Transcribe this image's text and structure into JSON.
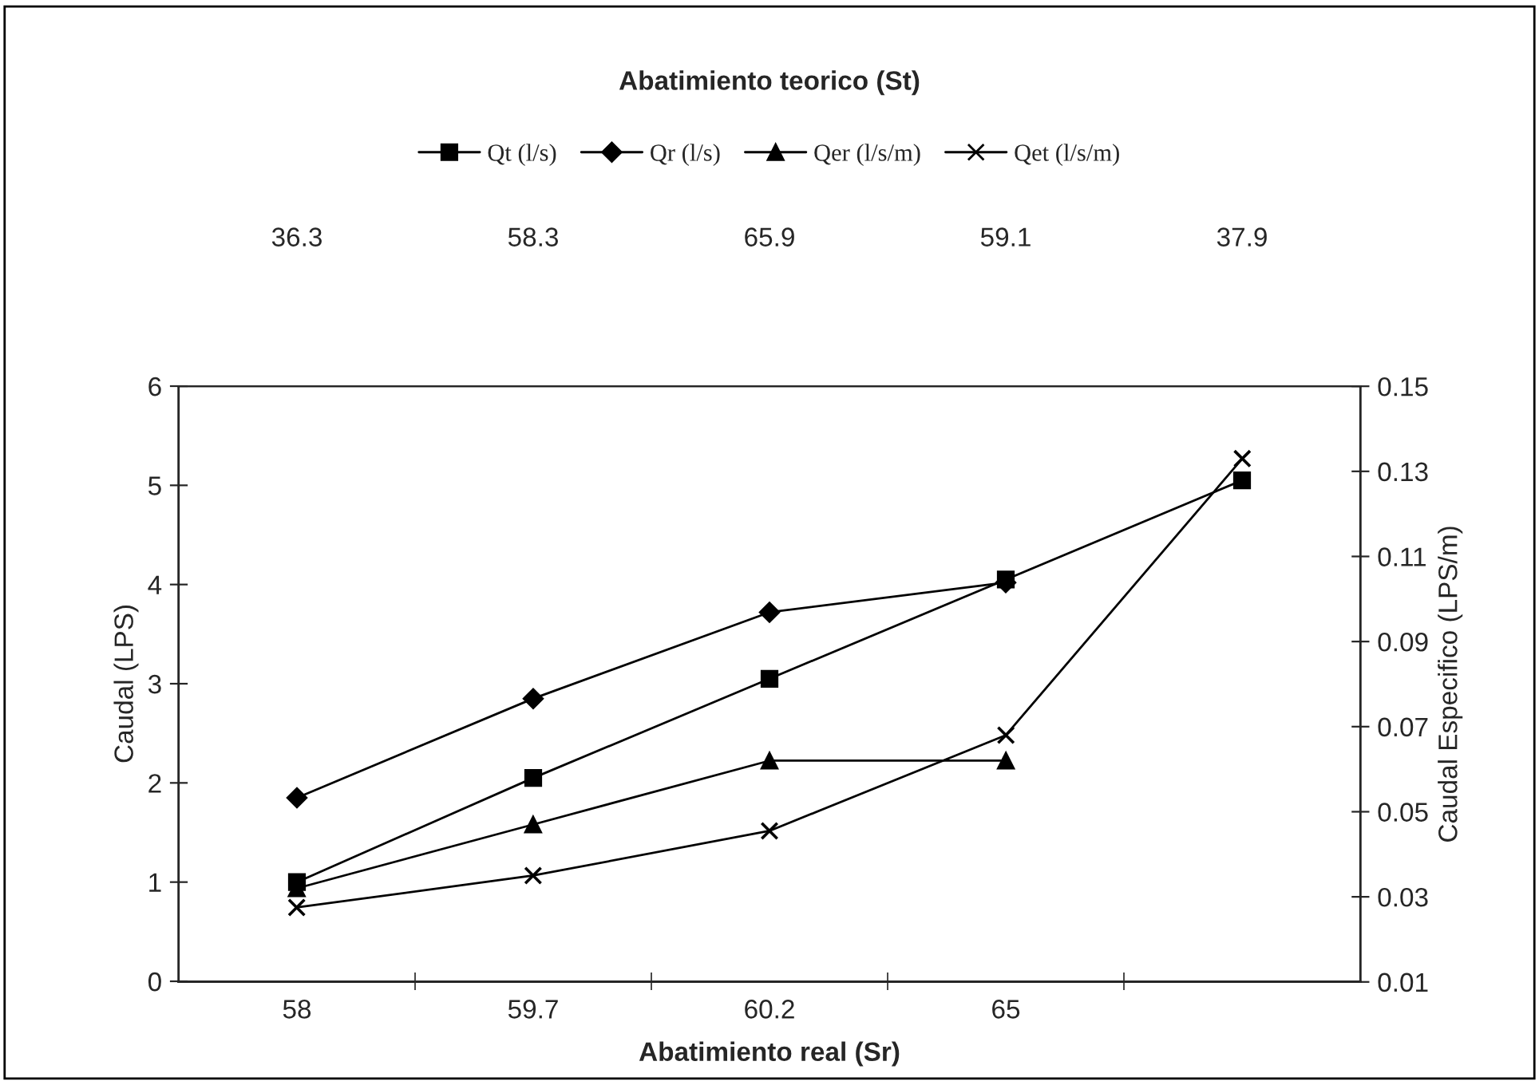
{
  "chart_data": {
    "type": "line",
    "categories": [
      "58",
      "59.7",
      "60.2",
      "65",
      null
    ],
    "annotations": [
      "36.3",
      "58.3",
      "65.9",
      "59.1",
      "37.9"
    ],
    "xlabel": "Abatimiento real (Sr)",
    "x2label": "Abatimiento teorico (St)",
    "ylabel": "Caudal (LPS)",
    "y2label": "Caudal Especifico (LPS/m)",
    "ylim": [
      0,
      6
    ],
    "yticks": [
      0,
      1,
      2,
      3,
      4,
      5,
      6
    ],
    "y2lim": [
      0.01,
      0.15
    ],
    "y2ticks": [
      {
        "value": 0.01,
        "label": "0.01"
      },
      {
        "value": 0.03,
        "label": "0.03"
      },
      {
        "value": 0.05,
        "label": "0.05"
      },
      {
        "value": 0.07,
        "label": "0.07"
      },
      {
        "value": 0.09,
        "label": "0.09"
      },
      {
        "value": 0.11,
        "label": "0.11"
      },
      {
        "value": 0.13,
        "label": "0.13"
      },
      {
        "value": 0.15,
        "label": "0.15"
      }
    ],
    "series": [
      {
        "name": "Qt (l/s)",
        "color": "#000000",
        "marker": "square",
        "values": [
          1.0,
          2.05,
          3.05,
          4.05,
          5.05
        ]
      },
      {
        "name": "Qr (l/s)",
        "color": "#000000",
        "marker": "diamond",
        "values": [
          1.85,
          2.85,
          3.72,
          4.02,
          null
        ]
      },
      {
        "name": "Qer (l/s/m)",
        "color": "#000000",
        "marker": "triangle",
        "axis": "y2",
        "values": [
          0.032,
          0.047,
          0.062,
          0.062,
          null
        ]
      },
      {
        "name": "Qet (l/s/m)",
        "color": "#000000",
        "marker": "cross",
        "axis": "y2",
        "values": [
          0.0275,
          0.035,
          0.0455,
          0.068,
          0.133
        ]
      }
    ],
    "legend": "top",
    "grid": false
  }
}
